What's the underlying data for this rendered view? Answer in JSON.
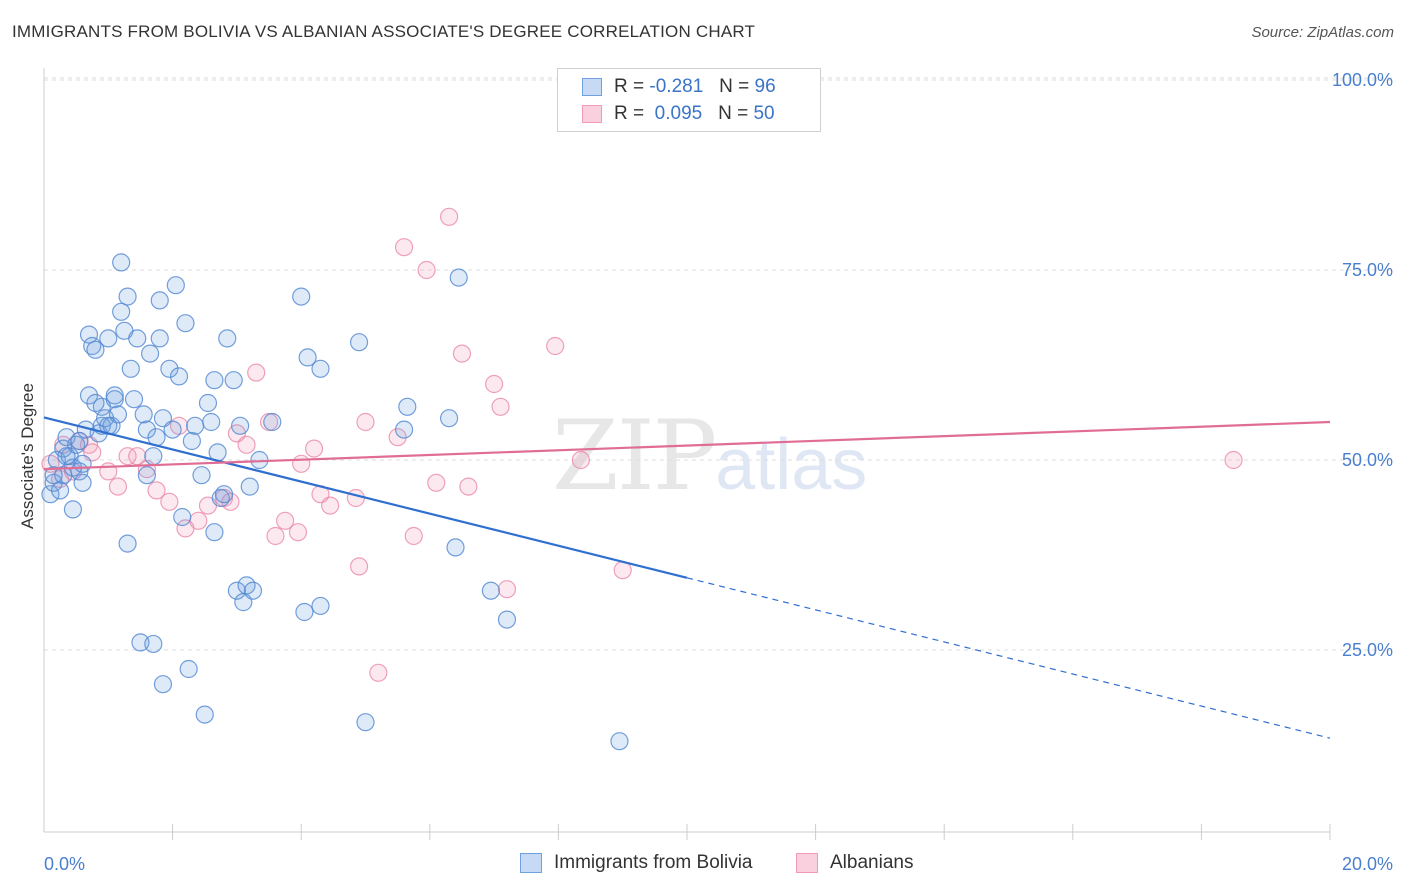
{
  "header": {
    "title": "IMMIGRANTS FROM BOLIVIA VS ALBANIAN ASSOCIATE'S DEGREE CORRELATION CHART",
    "source": "Source: ZipAtlas.com"
  },
  "watermark": {
    "zip": "ZIP",
    "atlas": "atlas"
  },
  "legend": {
    "rows": [
      {
        "r_label": "R =",
        "r_value": "-0.281",
        "n_label": "N =",
        "n_value": "96",
        "color": "#6fa0e0"
      },
      {
        "r_label": "R =",
        "r_value": "0.095",
        "n_label": "N =",
        "n_value": "50",
        "color": "#f19ab5"
      }
    ]
  },
  "bottom_legend": {
    "series1": "Immigrants from Bolivia",
    "series2": "Albanians"
  },
  "chart_data": {
    "type": "scatter",
    "ylabel": "Associate's Degree",
    "xlim": [
      0,
      20
    ],
    "ylim": [
      0,
      100
    ],
    "x_tick_labels": [
      "0.0%",
      "20.0%"
    ],
    "y_ticks": [
      25,
      50,
      75,
      100
    ],
    "y_tick_labels": [
      "25.0%",
      "50.0%",
      "75.0%",
      "100.0%"
    ],
    "grid": true,
    "colors": {
      "bolivia": "#6fa0e0",
      "bolivia_line": "#2f6fd0",
      "albanians": "#f19ab5",
      "albanians_line": "#e06d93"
    },
    "series": [
      {
        "name": "Immigrants from Bolivia",
        "points": [
          [
            0.1,
            45.5
          ],
          [
            0.15,
            47
          ],
          [
            0.2,
            50
          ],
          [
            0.25,
            46
          ],
          [
            0.3,
            48
          ],
          [
            0.3,
            51.5
          ],
          [
            0.35,
            53
          ],
          [
            0.4,
            50.5
          ],
          [
            0.45,
            49
          ],
          [
            0.45,
            43.5
          ],
          [
            0.5,
            52
          ],
          [
            0.55,
            48.5
          ],
          [
            0.6,
            49.5
          ],
          [
            0.65,
            54
          ],
          [
            0.7,
            58.5
          ],
          [
            0.7,
            66.5
          ],
          [
            0.75,
            65
          ],
          [
            0.8,
            64.5
          ],
          [
            0.85,
            53.5
          ],
          [
            0.9,
            57
          ],
          [
            0.9,
            54.5
          ],
          [
            0.95,
            55.5
          ],
          [
            1.0,
            66
          ],
          [
            1.05,
            54.5
          ],
          [
            1.1,
            58.5
          ],
          [
            1.1,
            58
          ],
          [
            1.15,
            56
          ],
          [
            1.2,
            76
          ],
          [
            1.2,
            69.5
          ],
          [
            1.25,
            67
          ],
          [
            1.3,
            39
          ],
          [
            1.3,
            71.5
          ],
          [
            1.35,
            62
          ],
          [
            1.4,
            58
          ],
          [
            1.45,
            66
          ],
          [
            1.5,
            26
          ],
          [
            1.55,
            56
          ],
          [
            1.6,
            54
          ],
          [
            1.6,
            48
          ],
          [
            1.65,
            64
          ],
          [
            1.7,
            50.5
          ],
          [
            1.7,
            25.8
          ],
          [
            1.75,
            53
          ],
          [
            1.8,
            71
          ],
          [
            1.8,
            66
          ],
          [
            1.85,
            55.5
          ],
          [
            1.85,
            20.5
          ],
          [
            1.95,
            62
          ],
          [
            2.0,
            54
          ],
          [
            2.05,
            73
          ],
          [
            2.1,
            61
          ],
          [
            2.15,
            42.5
          ],
          [
            2.2,
            68
          ],
          [
            2.25,
            22.5
          ],
          [
            2.3,
            52.5
          ],
          [
            2.35,
            54.5
          ],
          [
            2.45,
            48
          ],
          [
            2.5,
            16.5
          ],
          [
            2.55,
            57.5
          ],
          [
            2.6,
            55
          ],
          [
            2.65,
            40.5
          ],
          [
            2.7,
            51
          ],
          [
            2.75,
            45
          ],
          [
            2.8,
            45.5
          ],
          [
            2.85,
            66
          ],
          [
            2.95,
            60.5
          ],
          [
            3.0,
            32.8
          ],
          [
            3.05,
            54.5
          ],
          [
            3.1,
            31.3
          ],
          [
            3.15,
            33.5
          ],
          [
            3.2,
            46.5
          ],
          [
            3.25,
            32.8
          ],
          [
            3.35,
            50
          ],
          [
            3.55,
            55
          ],
          [
            4.0,
            71.5
          ],
          [
            4.05,
            30
          ],
          [
            4.1,
            63.5
          ],
          [
            4.3,
            30.8
          ],
          [
            4.3,
            62
          ],
          [
            4.9,
            65.5
          ],
          [
            5.0,
            15.5
          ],
          [
            5.6,
            54
          ],
          [
            5.65,
            57
          ],
          [
            6.3,
            55.5
          ],
          [
            6.45,
            74
          ],
          [
            6.4,
            38.5
          ],
          [
            6.95,
            32.8
          ],
          [
            7.2,
            29
          ],
          [
            8.95,
            13
          ],
          [
            0.55,
            52.5
          ],
          [
            0.15,
            48
          ],
          [
            0.35,
            50.5
          ],
          [
            0.6,
            47
          ],
          [
            1.0,
            54.5
          ],
          [
            2.65,
            60.5
          ],
          [
            0.8,
            57.5
          ]
        ]
      },
      {
        "name": "Albanians",
        "points": [
          [
            0.1,
            49.5
          ],
          [
            0.25,
            47.5
          ],
          [
            0.3,
            52
          ],
          [
            0.45,
            48.5
          ],
          [
            0.55,
            52.5
          ],
          [
            0.7,
            52
          ],
          [
            0.75,
            51
          ],
          [
            1.0,
            48.5
          ],
          [
            1.15,
            46.5
          ],
          [
            1.3,
            50.5
          ],
          [
            1.45,
            50.5
          ],
          [
            1.6,
            48.8
          ],
          [
            1.75,
            46
          ],
          [
            1.95,
            44.5
          ],
          [
            2.1,
            54.5
          ],
          [
            2.2,
            41
          ],
          [
            2.4,
            42
          ],
          [
            2.55,
            44
          ],
          [
            2.8,
            45
          ],
          [
            2.9,
            44.5
          ],
          [
            3.0,
            53.5
          ],
          [
            3.15,
            52
          ],
          [
            3.3,
            61.5
          ],
          [
            3.5,
            55
          ],
          [
            3.6,
            40
          ],
          [
            3.75,
            42
          ],
          [
            3.95,
            40.5
          ],
          [
            4.0,
            49.5
          ],
          [
            4.2,
            51.5
          ],
          [
            4.3,
            45.5
          ],
          [
            4.45,
            44
          ],
          [
            4.85,
            45
          ],
          [
            4.9,
            36
          ],
          [
            5.0,
            55
          ],
          [
            5.2,
            22
          ],
          [
            5.5,
            53
          ],
          [
            5.6,
            78
          ],
          [
            5.75,
            40
          ],
          [
            5.95,
            75
          ],
          [
            6.1,
            47
          ],
          [
            6.3,
            82
          ],
          [
            6.5,
            64
          ],
          [
            6.6,
            46.5
          ],
          [
            7.0,
            60
          ],
          [
            7.1,
            57
          ],
          [
            7.2,
            33
          ],
          [
            7.95,
            65
          ],
          [
            8.35,
            50
          ],
          [
            9.0,
            35.5
          ],
          [
            18.5,
            50
          ]
        ]
      }
    ],
    "trendlines": [
      {
        "name": "Immigrants from Bolivia",
        "x": [
          0,
          10
        ],
        "y": [
          55.6,
          34.5
        ],
        "dashed_extension_x": [
          10,
          20
        ],
        "dashed_extension_y": [
          34.5,
          13.4
        ]
      },
      {
        "name": "Albanians",
        "x": [
          0,
          20
        ],
        "y": [
          48.8,
          55
        ]
      }
    ]
  }
}
